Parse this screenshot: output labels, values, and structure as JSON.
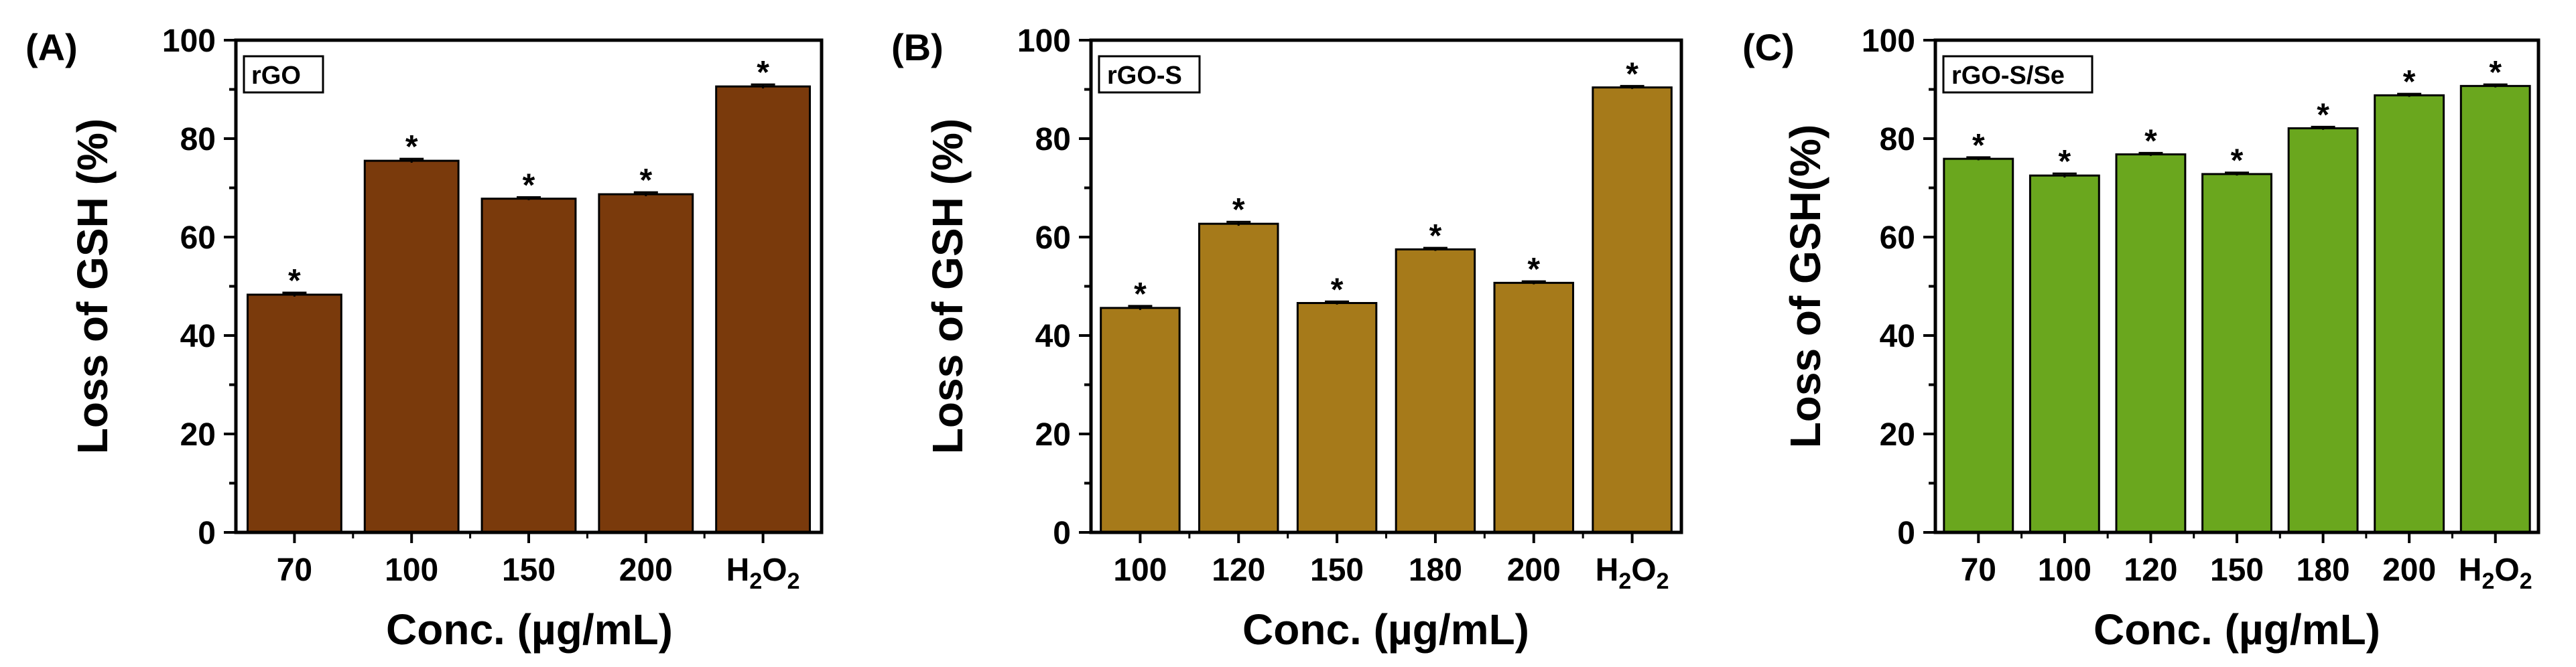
{
  "chart_data": [
    {
      "type": "bar",
      "panel_label": "(A)",
      "legend": "rGO",
      "color": "#7a3a0c",
      "categories": [
        "70",
        "100",
        "150",
        "200",
        "H2O2"
      ],
      "tick_labels": [
        {
          "main": "70"
        },
        {
          "main": "100"
        },
        {
          "main": "150"
        },
        {
          "main": "200"
        },
        {
          "main": "H",
          "sub1": "2",
          "mid": "O",
          "sub2": "2"
        }
      ],
      "values": [
        48.3,
        75.5,
        67.8,
        68.7,
        90.6
      ],
      "errors": [
        0.4,
        0.4,
        0.3,
        0.4,
        0.4
      ],
      "annotations": [
        "*",
        "*",
        "*",
        "*",
        "*"
      ],
      "xlabel": "Conc. (µg/mL)",
      "ylabel": "Loss of GSH (%)",
      "ylim": [
        0,
        100
      ],
      "yticks": [
        "0",
        "20",
        "40",
        "60",
        "80",
        "100"
      ]
    },
    {
      "type": "bar",
      "panel_label": "(B)",
      "legend": "rGO-S",
      "color": "#a67a1a",
      "categories": [
        "100",
        "120",
        "150",
        "180",
        "200",
        "H2O2"
      ],
      "tick_labels": [
        {
          "main": "100"
        },
        {
          "main": "120"
        },
        {
          "main": "150"
        },
        {
          "main": "180"
        },
        {
          "main": "200"
        },
        {
          "main": "H",
          "sub1": "2",
          "mid": "O",
          "sub2": "2"
        }
      ],
      "values": [
        45.6,
        62.7,
        46.6,
        57.5,
        50.7,
        90.4
      ],
      "errors": [
        0.4,
        0.4,
        0.3,
        0.3,
        0.3,
        0.3
      ],
      "annotations": [
        "*",
        "*",
        "*",
        "*",
        "*",
        "*"
      ],
      "xlabel": "Conc. (µg/mL)",
      "ylabel": "Loss of GSH (%)",
      "ylim": [
        0,
        100
      ],
      "yticks": [
        "0",
        "20",
        "40",
        "60",
        "80",
        "100"
      ]
    },
    {
      "type": "bar",
      "panel_label": "(C)",
      "legend": "rGO-S/Se",
      "color": "#6aa71e",
      "categories": [
        "70",
        "100",
        "120",
        "150",
        "180",
        "200",
        "H2O2"
      ],
      "tick_labels": [
        {
          "main": "70"
        },
        {
          "main": "100"
        },
        {
          "main": "120"
        },
        {
          "main": "150"
        },
        {
          "main": "180"
        },
        {
          "main": "200"
        },
        {
          "main": "H",
          "sub1": "2",
          "mid": "O",
          "sub2": "2"
        }
      ],
      "values": [
        75.9,
        72.5,
        76.8,
        72.8,
        82.1,
        88.8,
        90.7
      ],
      "errors": [
        0.3,
        0.4,
        0.3,
        0.3,
        0.3,
        0.3,
        0.3
      ],
      "annotations": [
        "*",
        "*",
        "*",
        "*",
        "*",
        "*",
        "*"
      ],
      "xlabel": "Conc. (µg/mL)",
      "ylabel": "Loss of GSH(%)",
      "ylim": [
        0,
        100
      ],
      "yticks": [
        "0",
        "20",
        "40",
        "60",
        "80",
        "100"
      ]
    }
  ]
}
